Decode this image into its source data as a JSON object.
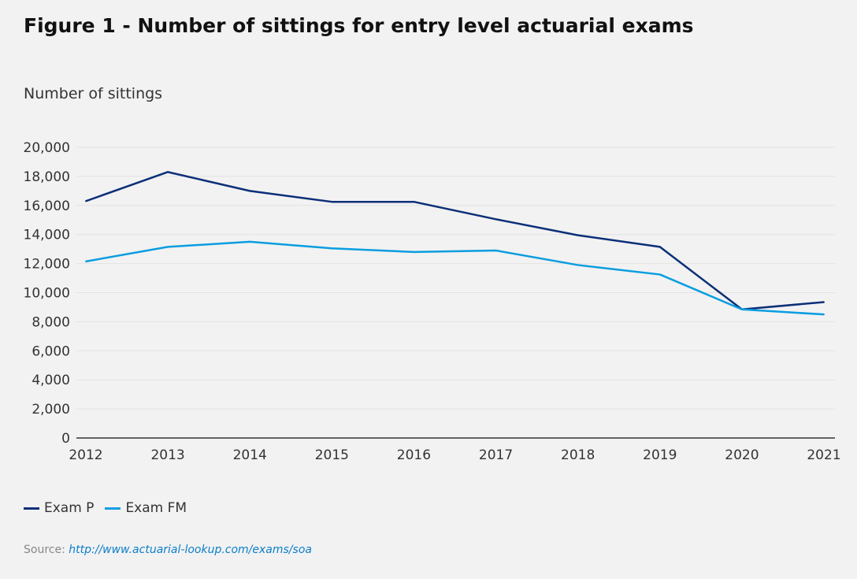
{
  "chart_data": {
    "type": "line",
    "title": "Figure 1 - Number of sittings for entry level actuarial exams",
    "ylabel": "Number of sittings",
    "xlabel": "",
    "x": [
      2012,
      2013,
      2014,
      2015,
      2016,
      2017,
      2018,
      2019,
      2020,
      2021
    ],
    "x_tick_labels": [
      "2012",
      "2013",
      "2014",
      "2015",
      "2016",
      "2017",
      "2018",
      "2019",
      "2020",
      "2021"
    ],
    "ylim": [
      0,
      20000
    ],
    "y_ticks": [
      0,
      2000,
      4000,
      6000,
      8000,
      10000,
      12000,
      14000,
      16000,
      18000,
      20000
    ],
    "y_tick_labels": [
      "0",
      "2,000",
      "4,000",
      "6,000",
      "8,000",
      "10,000",
      "12,000",
      "14,000",
      "16,000",
      "18,000",
      "20,000"
    ],
    "grid": true,
    "legend_placement": "bottom-left",
    "series": [
      {
        "name": "Exam P",
        "color": "#0c2f78",
        "values": [
          16300,
          18300,
          17000,
          16250,
          16250,
          15050,
          13950,
          13150,
          8850,
          9350
        ]
      },
      {
        "name": "Exam FM",
        "color": "#0a9de0",
        "values": [
          12150,
          13150,
          13500,
          13050,
          12800,
          12900,
          11900,
          11250,
          8850,
          8500
        ]
      }
    ]
  },
  "source": {
    "label": "Source:",
    "link": "http://www.actuarial-lookup.com/exams/soa"
  }
}
